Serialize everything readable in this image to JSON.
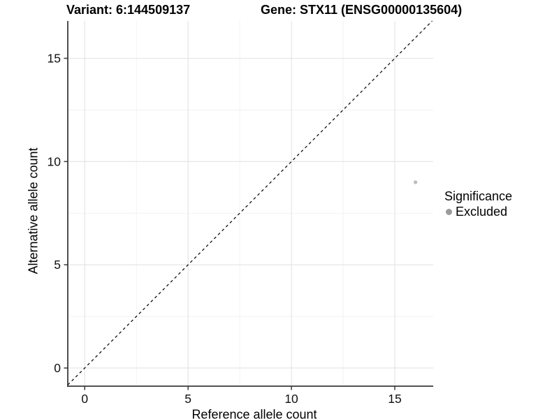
{
  "figure": {
    "background": "#ffffff"
  },
  "chart_data": {
    "type": "scatter",
    "titles": {
      "variant": "Variant: 6:144509137",
      "gene": "Gene: STX11 (ENSG00000135604)"
    },
    "xlabel": "Reference allele count",
    "ylabel": "Alternative allele count",
    "xlim": [
      -0.82,
      16.86
    ],
    "ylim": [
      -0.88,
      16.81
    ],
    "x_ticks": [
      0,
      5,
      10,
      15
    ],
    "y_ticks": [
      0,
      5,
      10,
      15
    ],
    "x_minor_ticks": [
      2.5,
      7.5,
      12.5
    ],
    "y_minor_ticks": [
      2.5,
      7.5,
      12.5
    ],
    "grid": "major+minor",
    "reference_line": {
      "kind": "identity y=x",
      "style": "dashed",
      "dash": [
        4,
        4
      ]
    },
    "series": [
      {
        "name": "Excluded",
        "marker": "circle",
        "color": "#bdbdbd",
        "size": 2.7,
        "points": [
          {
            "x": 16,
            "y": 9
          }
        ]
      }
    ],
    "legend": {
      "position": "right",
      "title": "Significance",
      "items": [
        {
          "label": "Excluded",
          "color": "#9b9b9b"
        }
      ]
    },
    "colors": {
      "axis": "#3a3a3a",
      "grid_major": "#e3e3e3",
      "grid_minor": "#efefef",
      "reference_line": "#111111",
      "text": "#000000"
    }
  }
}
